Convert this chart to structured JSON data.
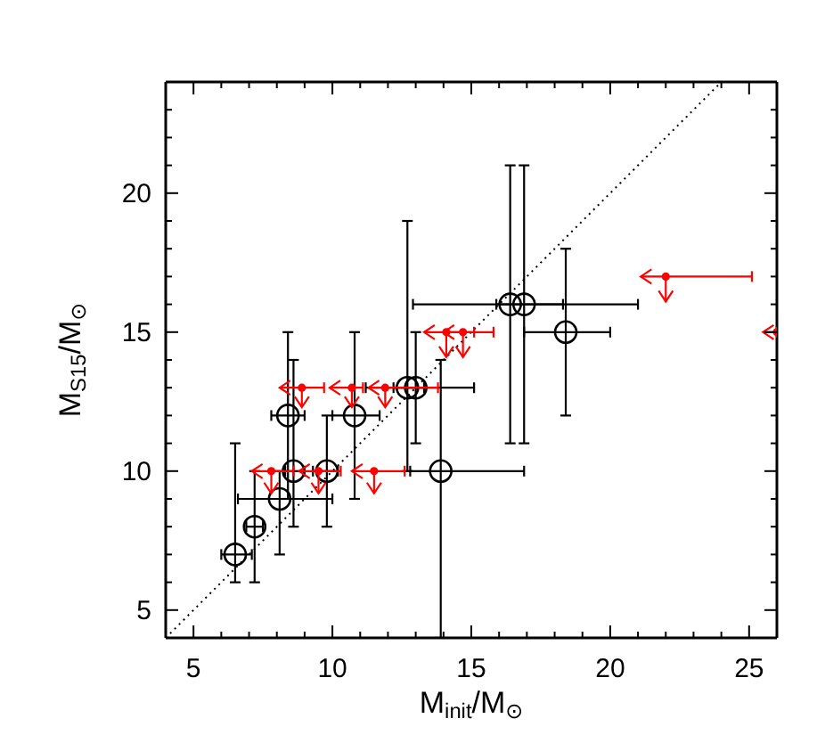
{
  "chart_data": {
    "type": "scatter",
    "xlabel": "M$_{init}$/M$_{⊙}$",
    "ylabel": "M$_{S15}$/M$_{⊙}$",
    "xlim": [
      4,
      26
    ],
    "ylim": [
      4,
      24
    ],
    "xticks": [
      5,
      {
        "value": 6,
        "label": null
      },
      {
        "value": 7,
        "label": null
      },
      {
        "value": 8,
        "label": null
      },
      {
        "value": 9,
        "label": null
      },
      10,
      {
        "value": 11,
        "label": null
      },
      {
        "value": 12,
        "label": null
      },
      {
        "value": 13,
        "label": null
      },
      {
        "value": 14,
        "label": null
      },
      15,
      {
        "value": 16,
        "label": null
      },
      {
        "value": 17,
        "label": null
      },
      {
        "value": 18,
        "label": null
      },
      {
        "value": 19,
        "label": null
      },
      20,
      {
        "value": 21,
        "label": null
      },
      {
        "value": 22,
        "label": null
      },
      {
        "value": 23,
        "label": null
      },
      {
        "value": 24,
        "label": null
      },
      25
    ],
    "yticks": [
      5,
      {
        "value": 6,
        "label": null
      },
      {
        "value": 7,
        "label": null
      },
      {
        "value": 8,
        "label": null
      },
      {
        "value": 9,
        "label": null
      },
      10,
      {
        "value": 11,
        "label": null
      },
      {
        "value": 12,
        "label": null
      },
      {
        "value": 13,
        "label": null
      },
      {
        "value": 14,
        "label": null
      },
      15,
      {
        "value": 16,
        "label": null
      },
      {
        "value": 17,
        "label": null
      },
      {
        "value": 18,
        "label": null
      },
      {
        "value": 19,
        "label": null
      },
      20,
      {
        "value": 21,
        "label": null
      },
      {
        "value": 22,
        "label": null
      },
      {
        "value": 23,
        "label": null
      }
    ],
    "series": [
      {
        "type": "line",
        "color": "#000000",
        "x": [
          4,
          24
        ],
        "values": [
          4,
          24
        ],
        "line_style": "dotted",
        "marker": "none"
      },
      {
        "color": "#000000",
        "marker": "circle",
        "x": [
          6.5,
          7.2,
          8.1,
          8.4,
          8.6,
          9.8,
          10.8,
          12.7,
          13,
          13.9,
          16.4,
          16.9,
          18.4
        ],
        "values": [
          7,
          8,
          9,
          12,
          10,
          10,
          12,
          13,
          13,
          10,
          16,
          16,
          15
        ],
        "errors": [
          [
            6,
            11
          ],
          [
            6,
            10
          ],
          [
            7,
            10
          ],
          [
            9,
            15
          ],
          [
            8,
            14
          ],
          [
            8,
            12
          ],
          [
            9,
            15
          ],
          [
            10,
            19
          ],
          [
            11,
            15
          ],
          [
            4,
            14
          ],
          [
            11,
            21
          ],
          [
            11,
            21
          ],
          [
            12,
            18
          ]
        ],
        "xerrors": [
          [
            6,
            7.1
          ],
          [
            6.9,
            7.5
          ],
          [
            6.6,
            10
          ],
          [
            7.8,
            9
          ],
          [
            8.3,
            9
          ],
          [
            9.3,
            10.2
          ],
          [
            10,
            11.7
          ],
          [
            12.2,
            13.3
          ],
          [
            11.2,
            15.1
          ],
          [
            12.8,
            16.9
          ],
          [
            12.9,
            18.3
          ],
          [
            15.9,
            21
          ],
          [
            16.9,
            20
          ]
        ]
      },
      {
        "color": "#ff0000",
        "marker": "circle",
        "x": [
          7.8,
          9.5,
          11.5,
          8.9,
          10.7,
          11.9,
          14.1,
          14.7,
          22,
          26
        ],
        "values": [
          10,
          10,
          10,
          13,
          13,
          13,
          15,
          15,
          17,
          15
        ],
        "errors": [
          [
            9.2,
            10
          ],
          [
            9.2,
            10
          ],
          [
            9.2,
            10
          ],
          [
            12.3,
            13
          ],
          [
            12.3,
            13
          ],
          [
            12.3,
            13
          ],
          [
            14.1,
            15
          ],
          [
            14.1,
            15
          ],
          [
            16.1,
            17
          ],
          null
        ],
        "xerrors": [
          [
            7.1,
            8.6
          ],
          [
            8.8,
            10.3
          ],
          [
            10.7,
            12.6
          ],
          [
            8.1,
            9.7
          ],
          [
            9.9,
            11.1
          ],
          [
            11.3,
            13.8
          ],
          [
            13.3,
            15.1
          ],
          [
            14,
            15.8
          ],
          [
            21.1,
            25.1
          ],
          [
            25.5,
            26
          ]
        ]
      }
    ]
  }
}
